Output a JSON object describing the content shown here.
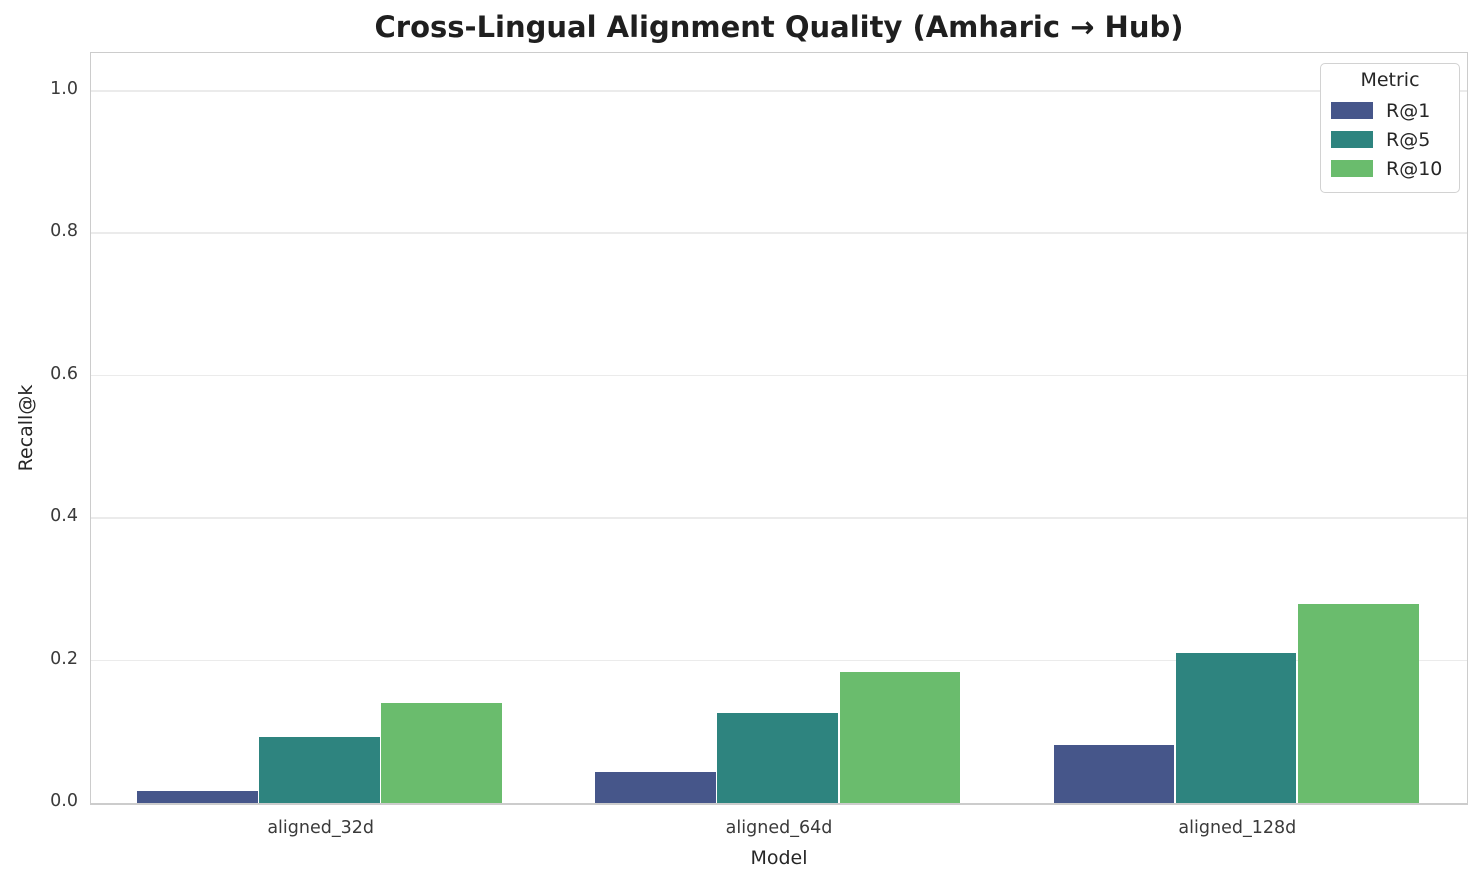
{
  "chart_data": {
    "type": "bar",
    "title": "Cross-Lingual Alignment Quality (Amharic → Hub)",
    "xlabel": "Model",
    "ylabel": "Recall@k",
    "legend_title": "Metric",
    "legend_position": "upper right",
    "grid": true,
    "categories": [
      "aligned_32d",
      "aligned_64d",
      "aligned_128d"
    ],
    "series": [
      {
        "name": "R@1",
        "color": "#46568a",
        "values": [
          0.017,
          0.044,
          0.082
        ]
      },
      {
        "name": "R@5",
        "color": "#2e847f",
        "values": [
          0.092,
          0.127,
          0.211
        ]
      },
      {
        "name": "R@10",
        "color": "#6abc6d",
        "values": [
          0.14,
          0.184,
          0.279
        ]
      }
    ],
    "ylim": [
      0,
      1.053
    ],
    "yticks": [
      0.0,
      0.2,
      0.4,
      0.6,
      0.8,
      1.0
    ],
    "ytick_labels": [
      "0.0",
      "0.2",
      "0.4",
      "0.6",
      "0.8",
      "1.0"
    ],
    "group_width_fraction": 0.8
  },
  "colors": {
    "background": "#ffffff",
    "grid": "#ebebeb",
    "spine": "#cccccc",
    "text": "#262626",
    "tick_text": "#3a3a3a"
  }
}
